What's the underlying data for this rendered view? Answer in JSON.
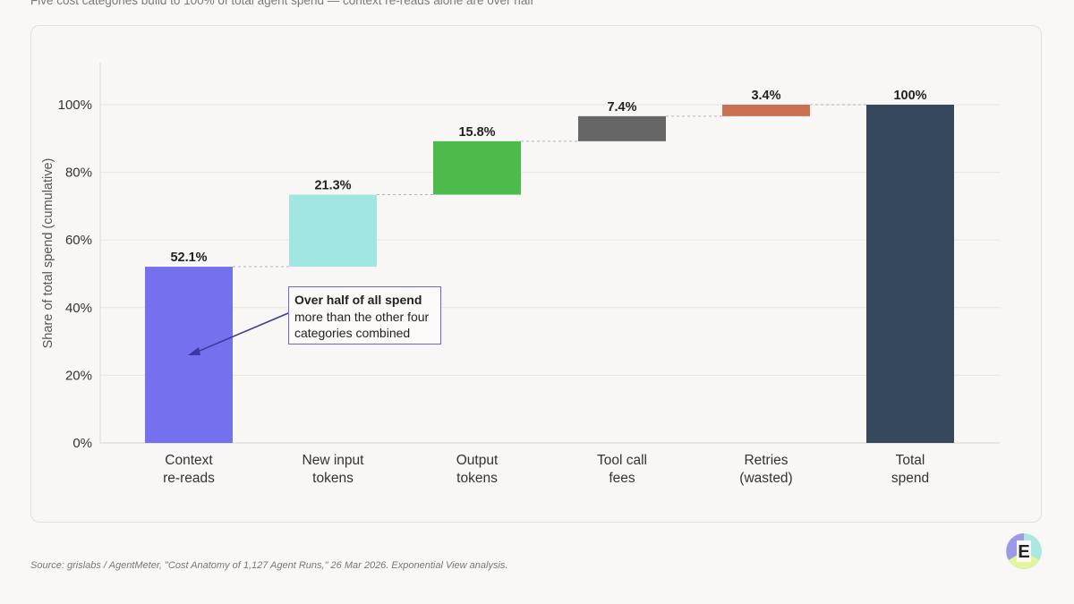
{
  "subtitle": "Five cost categories build to 100% of total agent spend — context re-reads alone are over half",
  "source": "Source: grislabs / AgentMeter, \"Cost Anatomy of 1,127 Agent Runs,\" 26 Mar 2026. Exponential View analysis.",
  "callout": {
    "title": "Over half of all spend",
    "body": "more than the other four categories combined"
  },
  "logo": {
    "glyph": "E"
  },
  "chart_data": {
    "type": "bar",
    "subtype": "waterfall",
    "ylabel": "Share of total spend (cumulative)",
    "ylim": [
      0,
      100
    ],
    "yticks": [
      "0%",
      "20%",
      "40%",
      "60%",
      "80%",
      "100%"
    ],
    "grid": true,
    "categories": [
      "Context\nre-reads",
      "New input\ntokens",
      "Output\ntokens",
      "Tool call\nfees",
      "Retries\n(wasted)",
      "Total\nspend"
    ],
    "values": [
      52.1,
      21.3,
      15.8,
      7.4,
      3.4,
      100
    ],
    "data_labels": [
      "52.1%",
      "21.3%",
      "15.8%",
      "7.4%",
      "3.4%",
      "100%"
    ],
    "colors": [
      "#7570ee",
      "#a2e6e2",
      "#4cbb4c",
      "#666666",
      "#c8704f",
      "#36495c"
    ]
  }
}
